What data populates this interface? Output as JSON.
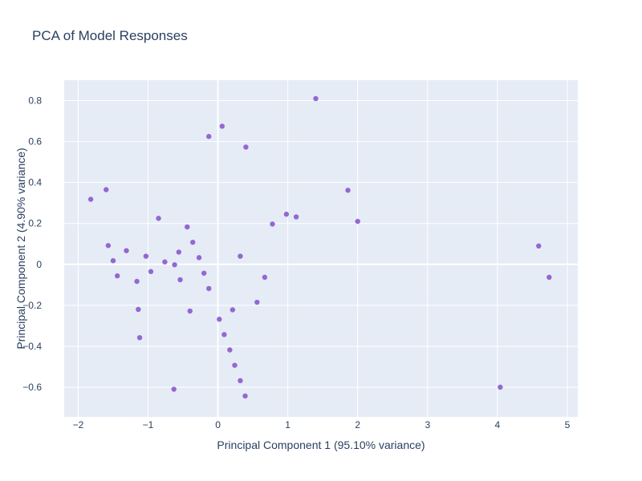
{
  "chart_data": {
    "type": "scatter",
    "title": "PCA of Model Responses",
    "xlabel": "Principal Component 1 (95.10% variance)",
    "ylabel": "Principal Component 2 (4.90% variance)",
    "xlim": [
      -2.2,
      5.15
    ],
    "ylim": [
      -0.745,
      0.9
    ],
    "xticks": [
      -2,
      -1,
      0,
      1,
      2,
      3,
      4,
      5
    ],
    "xtick_labels": [
      "−2",
      "−1",
      "0",
      "1",
      "2",
      "3",
      "4",
      "5"
    ],
    "yticks": [
      -0.6,
      -0.4,
      -0.2,
      0,
      0.2,
      0.4,
      0.6,
      0.8
    ],
    "ytick_labels": [
      "−0.6",
      "−0.4",
      "−0.2",
      "0",
      "0.2",
      "0.4",
      "0.6",
      "0.8"
    ],
    "grid": true,
    "marker_color": "#9467d2",
    "plot_bg": "#e5ecf6",
    "points": [
      {
        "x": 1.4,
        "y": 0.81
      },
      {
        "x": 0.06,
        "y": 0.675
      },
      {
        "x": -0.13,
        "y": 0.625
      },
      {
        "x": 0.4,
        "y": 0.573
      },
      {
        "x": -1.82,
        "y": 0.318
      },
      {
        "x": -1.6,
        "y": 0.365
      },
      {
        "x": 1.86,
        "y": 0.362
      },
      {
        "x": 2.0,
        "y": 0.21
      },
      {
        "x": 0.98,
        "y": 0.245
      },
      {
        "x": 1.12,
        "y": 0.232
      },
      {
        "x": 0.78,
        "y": 0.197
      },
      {
        "x": -0.85,
        "y": 0.225
      },
      {
        "x": -0.44,
        "y": 0.183
      },
      {
        "x": -0.36,
        "y": 0.108
      },
      {
        "x": -1.57,
        "y": 0.092
      },
      {
        "x": -1.31,
        "y": 0.067
      },
      {
        "x": -0.56,
        "y": 0.06
      },
      {
        "x": -1.03,
        "y": 0.04
      },
      {
        "x": -0.27,
        "y": 0.033
      },
      {
        "x": 0.32,
        "y": 0.04
      },
      {
        "x": -1.5,
        "y": 0.018
      },
      {
        "x": -0.76,
        "y": 0.012
      },
      {
        "x": -0.62,
        "y": -0.002
      },
      {
        "x": -0.96,
        "y": -0.035
      },
      {
        "x": -0.2,
        "y": -0.043
      },
      {
        "x": -1.44,
        "y": -0.056
      },
      {
        "x": 0.67,
        "y": -0.063
      },
      {
        "x": -0.54,
        "y": -0.075
      },
      {
        "x": -1.16,
        "y": -0.083
      },
      {
        "x": -0.13,
        "y": -0.118
      },
      {
        "x": 0.56,
        "y": -0.185
      },
      {
        "x": -1.14,
        "y": -0.22
      },
      {
        "x": 0.21,
        "y": -0.222
      },
      {
        "x": -0.4,
        "y": -0.228
      },
      {
        "x": 0.02,
        "y": -0.268
      },
      {
        "x": 0.09,
        "y": -0.343
      },
      {
        "x": -1.12,
        "y": -0.358
      },
      {
        "x": 0.17,
        "y": -0.418
      },
      {
        "x": 0.24,
        "y": -0.493
      },
      {
        "x": 0.32,
        "y": -0.568
      },
      {
        "x": -0.63,
        "y": -0.61
      },
      {
        "x": 0.39,
        "y": -0.643
      },
      {
        "x": 4.04,
        "y": -0.6
      },
      {
        "x": 4.59,
        "y": 0.09
      },
      {
        "x": 4.74,
        "y": -0.063
      }
    ]
  }
}
